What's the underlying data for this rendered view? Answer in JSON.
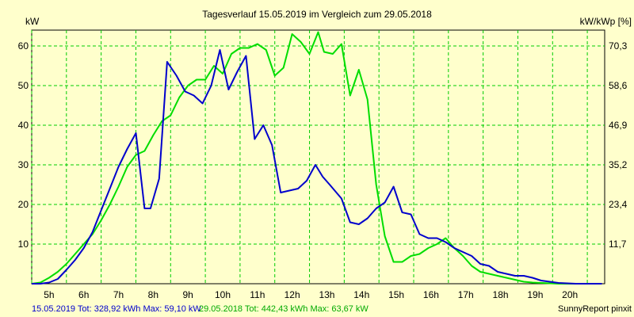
{
  "chart_data": {
    "type": "line",
    "title": "Tagesverlauf 15.05.2019 im Vergleich zum 29.05.2018",
    "ylabel_left": "kW",
    "ylabel_right": "kW/kWp [%]",
    "xlim": [
      4.5,
      21.0
    ],
    "ylim": [
      0,
      64
    ],
    "grid": true,
    "y_ticks_left": [
      "10",
      "20",
      "30",
      "40",
      "50",
      "60"
    ],
    "y_ticks_right": [
      "11,7",
      "23,4",
      "35,2",
      "46,9",
      "58,6",
      "70,3"
    ],
    "x_ticks": [
      "5h",
      "6h",
      "7h",
      "8h",
      "9h",
      "10h",
      "11h",
      "12h",
      "13h",
      "14h",
      "15h",
      "16h",
      "17h",
      "18h",
      "19h",
      "20h"
    ],
    "series": [
      {
        "name": "15.05.2019",
        "color": "#0000cc",
        "x": [
          4.5,
          4.75,
          5.0,
          5.25,
          5.5,
          5.75,
          6.0,
          6.25,
          6.5,
          6.75,
          7.0,
          7.25,
          7.5,
          7.75,
          7.92,
          8.17,
          8.4,
          8.67,
          8.92,
          9.17,
          9.42,
          9.67,
          9.92,
          10.17,
          10.42,
          10.67,
          10.92,
          11.17,
          11.42,
          11.67,
          11.92,
          12.17,
          12.42,
          12.67,
          12.88,
          13.08,
          13.42,
          13.67,
          13.92,
          14.17,
          14.42,
          14.67,
          14.92,
          15.17,
          15.42,
          15.67,
          15.92,
          16.17,
          16.42,
          16.67,
          16.92,
          17.17,
          17.42,
          17.67,
          17.92,
          18.17,
          18.42,
          18.67,
          18.92,
          19.17,
          19.42,
          19.67,
          19.92,
          20.17,
          20.42,
          20.67,
          20.92
        ],
        "values": [
          0,
          0,
          0.3,
          1.2,
          3.5,
          6.0,
          9.0,
          13.0,
          18.5,
          24.0,
          29.5,
          34.0,
          38.0,
          19.0,
          19.0,
          26.5,
          56.0,
          52.5,
          48.5,
          47.5,
          45.5,
          50.0,
          59.0,
          49.0,
          53.5,
          57.5,
          36.5,
          40.0,
          35.0,
          23.0,
          23.5,
          24.0,
          26.0,
          30.0,
          27.0,
          25.0,
          21.5,
          15.5,
          15.0,
          16.5,
          19.0,
          20.5,
          24.5,
          18.0,
          17.5,
          12.5,
          11.5,
          11.5,
          10.5,
          9.0,
          8.0,
          7.0,
          5.0,
          4.5,
          3.0,
          2.5,
          2.0,
          2.0,
          1.5,
          0.8,
          0.5,
          0.2,
          0.1,
          0,
          0,
          0,
          0
        ]
      },
      {
        "name": "29.05.2018",
        "color": "#00dd00",
        "x": [
          4.5,
          4.75,
          5.0,
          5.25,
          5.5,
          5.75,
          6.0,
          6.25,
          6.5,
          6.75,
          7.0,
          7.25,
          7.5,
          7.75,
          8.0,
          8.25,
          8.5,
          8.75,
          9.0,
          9.25,
          9.5,
          9.75,
          10.0,
          10.25,
          10.5,
          10.75,
          11.0,
          11.25,
          11.5,
          11.75,
          12.0,
          12.25,
          12.5,
          12.75,
          12.92,
          13.17,
          13.42,
          13.67,
          13.92,
          14.17,
          14.42,
          14.67,
          14.92,
          15.17,
          15.42,
          15.67,
          15.92,
          16.17,
          16.42,
          16.67,
          16.92,
          17.17,
          17.42,
          17.67,
          17.92,
          18.17,
          18.42,
          18.67,
          18.92,
          19.17,
          19.42,
          19.67,
          19.92,
          20.17,
          20.42,
          20.67,
          20.92
        ],
        "values": [
          0,
          0.3,
          1.5,
          3.0,
          5.0,
          7.5,
          10.0,
          12.5,
          16.0,
          20.0,
          24.5,
          29.5,
          32.5,
          33.5,
          37.5,
          41.0,
          42.5,
          47.0,
          50.0,
          51.5,
          51.5,
          55.0,
          53.0,
          58.0,
          59.5,
          59.5,
          60.5,
          59.0,
          52.5,
          54.5,
          63.0,
          61.0,
          58.0,
          63.5,
          58.5,
          58.0,
          60.5,
          47.5,
          54.0,
          46.5,
          25.0,
          12.0,
          5.5,
          5.5,
          7.0,
          7.5,
          9.0,
          10.0,
          11.5,
          9.0,
          7.0,
          4.5,
          3.0,
          2.5,
          2.0,
          1.5,
          1.0,
          0.5,
          0.3,
          0.2,
          0.1,
          0,
          0,
          0,
          0,
          0,
          0
        ]
      }
    ]
  },
  "footer": {
    "s1": "15.05.2019 Tot: 328,92 kWh Max: 59,10 kW",
    "s2": "29.05.2018 Tot: 442,43 kWh Max: 63,67 kW",
    "brand": "SunnyReport pinxit"
  }
}
